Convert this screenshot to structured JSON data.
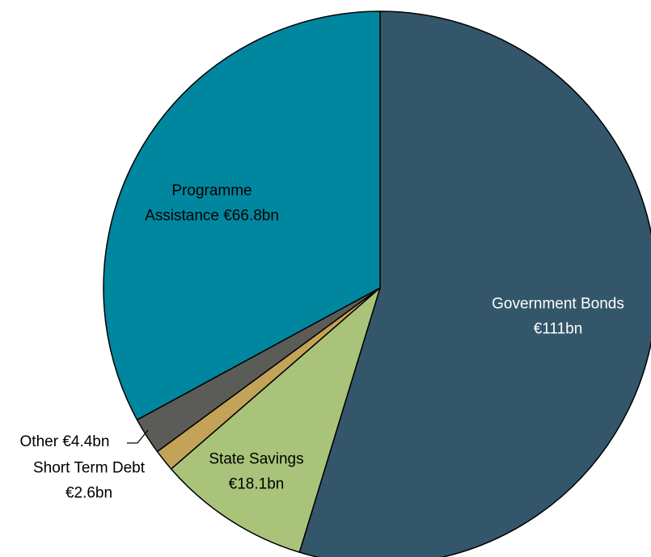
{
  "chart_data": {
    "type": "pie",
    "title": "",
    "slices": [
      {
        "label_lines": [
          "Government Bonds",
          "€111bn"
        ],
        "value": 111,
        "color": "#33566a",
        "text_color": "#ffffff"
      },
      {
        "label_lines": [
          "State Savings",
          "€18.1bn"
        ],
        "value": 18.1,
        "color": "#a9c47a",
        "text_color": "#000000"
      },
      {
        "label_lines": [
          "Short Term Debt",
          "€2.6bn"
        ],
        "value": 2.6,
        "color": "#c2a358",
        "text_color": "#000000"
      },
      {
        "label_lines": [
          "Other €4.4bn"
        ],
        "value": 4.4,
        "color": "#5b5b57",
        "text_color": "#000000"
      },
      {
        "label_lines": [
          "Programme",
          "Assistance €66.8bn"
        ],
        "value": 66.8,
        "color": "#01869f",
        "text_color": "#000000"
      }
    ]
  }
}
